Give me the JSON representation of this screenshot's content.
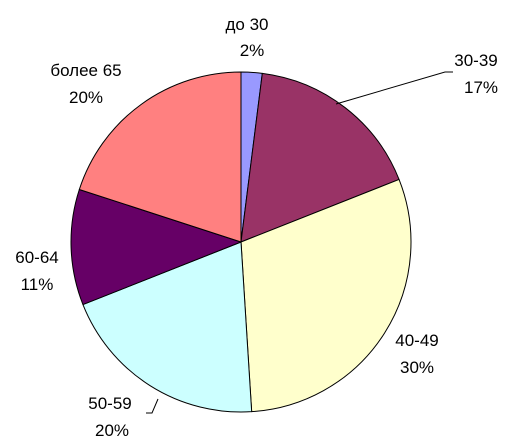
{
  "chart_data": {
    "type": "pie",
    "slices": [
      {
        "label": "до 30",
        "value": 2,
        "value_label": "2%",
        "color": "#9999FF"
      },
      {
        "label": "30-39",
        "value": 17,
        "value_label": "17%",
        "color": "#993366"
      },
      {
        "label": "40-49",
        "value": 30,
        "value_label": "30%",
        "color": "#FFFFCC"
      },
      {
        "label": "50-59",
        "value": 20,
        "value_label": "20%",
        "color": "#CCFFFF"
      },
      {
        "label": "60-64",
        "value": 11,
        "value_label": "11%",
        "color": "#660066"
      },
      {
        "label": "более 65",
        "value": 20,
        "value_label": "20%",
        "color": "#FF8080"
      }
    ],
    "start": "12 o'clock",
    "direction": "clockwise",
    "legend": "none",
    "outline_color": "#000000"
  }
}
